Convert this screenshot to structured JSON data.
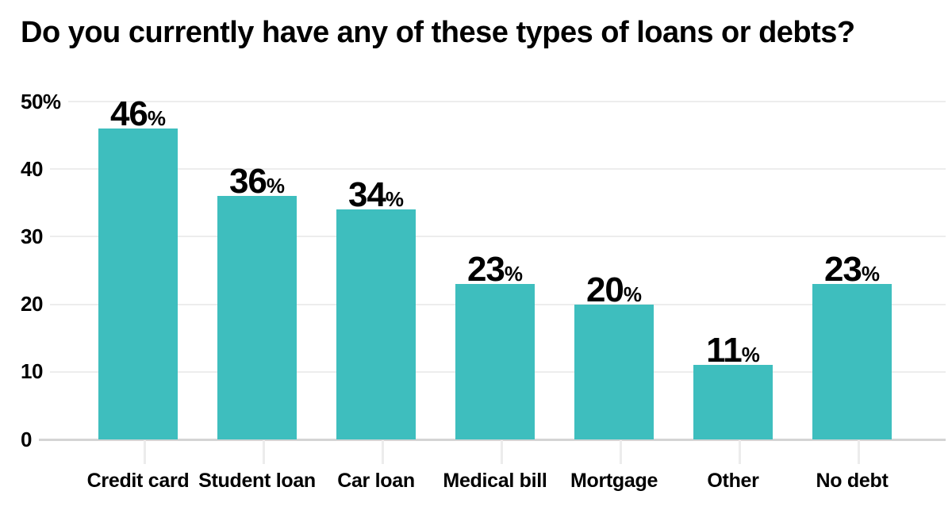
{
  "chart_data": {
    "type": "bar",
    "title": "Do you currently have any of these types of loans or debts?",
    "categories": [
      "Credit card",
      "Student loan",
      "Car loan",
      "Medical bill",
      "Mortgage",
      "Other",
      "No debt"
    ],
    "values": [
      46,
      36,
      34,
      23,
      20,
      11,
      23
    ],
    "value_suffix": "%",
    "xlabel": "",
    "ylabel": "",
    "ylim": [
      0,
      50
    ],
    "yticks": [
      {
        "value": 50,
        "label": "50%"
      },
      {
        "value": 40,
        "label": "40"
      },
      {
        "value": 30,
        "label": "30"
      },
      {
        "value": 20,
        "label": "20"
      },
      {
        "value": 10,
        "label": "10"
      },
      {
        "value": 0,
        "label": "0"
      }
    ],
    "grid": "horizontal",
    "legend_position": "none",
    "bar_color": "#3ebebe",
    "gridline_color": "#ededed",
    "baseline_color": "#d4d4d4",
    "tick_color": "#ececec",
    "text_color": "#000000",
    "background_color": "#ffffff"
  }
}
